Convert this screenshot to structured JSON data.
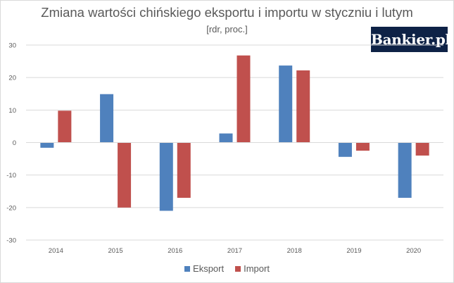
{
  "chart_data": {
    "type": "bar",
    "title": "Zmiana wartości chińskiego eksportu i importu w styczniu i lutym",
    "subtitle": "[rdr, proc.]",
    "categories": [
      "2014",
      "2015",
      "2016",
      "2017",
      "2018",
      "2019",
      "2020"
    ],
    "series": [
      {
        "name": "Eksport",
        "color": "#4f81bd",
        "values": [
          -1.6,
          14.9,
          -21.0,
          2.8,
          23.7,
          -4.4,
          -17.0
        ]
      },
      {
        "name": "Import",
        "color": "#c0504d",
        "values": [
          9.8,
          -20.0,
          -17.0,
          26.8,
          22.2,
          -2.5,
          -4.0
        ]
      }
    ],
    "ylim": [
      -30,
      30
    ],
    "yticks": [
      30,
      20,
      10,
      0,
      -10,
      -20,
      -30
    ],
    "grid": true,
    "legend_position": "bottom"
  },
  "branding": {
    "logo_text": "Bankier.pl"
  }
}
